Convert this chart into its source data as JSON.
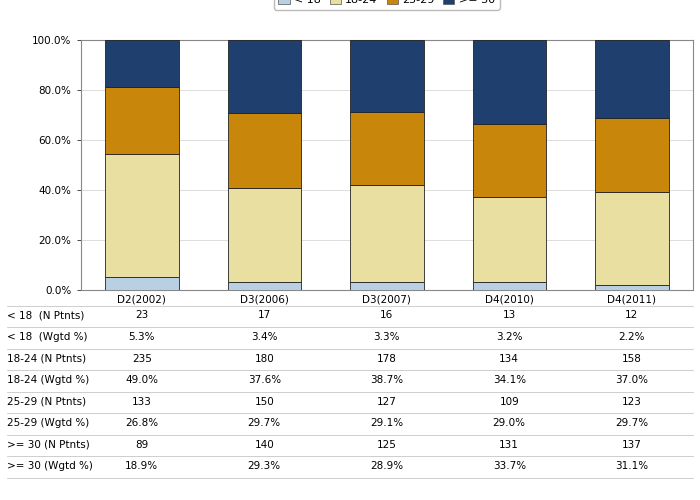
{
  "categories": [
    "D2(2002)",
    "D3(2006)",
    "D3(2007)",
    "D4(2010)",
    "D4(2011)"
  ],
  "series": {
    "< 18": [
      5.3,
      3.4,
      3.3,
      3.2,
      2.2
    ],
    "18-24": [
      49.0,
      37.6,
      38.7,
      34.1,
      37.0
    ],
    "25-29": [
      26.8,
      29.7,
      29.1,
      29.0,
      29.7
    ],
    ">= 30": [
      18.9,
      29.3,
      28.9,
      33.7,
      31.1
    ]
  },
  "colors": {
    "< 18": "#b8cfe4",
    "18-24": "#e8dfa0",
    "25-29": "#c8860a",
    ">= 30": "#1f3f6e"
  },
  "legend_labels": [
    "< 18",
    "18-24",
    "25-29",
    ">= 30"
  ],
  "table_data": {
    "< 18 (N Ptnts)": [
      "23",
      "17",
      "16",
      "13",
      "12"
    ],
    "< 18 (Wgtd %)": [
      "5.3%",
      "3.4%",
      "3.3%",
      "3.2%",
      "2.2%"
    ],
    "18-24 (N Ptnts)": [
      "235",
      "180",
      "178",
      "134",
      "158"
    ],
    "18-24 (Wgtd %)": [
      "49.0%",
      "37.6%",
      "38.7%",
      "34.1%",
      "37.0%"
    ],
    "25-29 (N Ptnts)": [
      "133",
      "150",
      "127",
      "109",
      "123"
    ],
    "25-29 (Wgtd %)": [
      "26.8%",
      "29.7%",
      "29.1%",
      "29.0%",
      "29.7%"
    ],
    ">= 30 (N Ptnts)": [
      "89",
      "140",
      "125",
      "131",
      "137"
    ],
    ">= 30 (Wgtd %)": [
      "18.9%",
      "29.3%",
      "28.9%",
      "33.7%",
      "31.1%"
    ]
  },
  "table_row_order": [
    "< 18 (N Ptnts)",
    "< 18 (Wgtd %)",
    "18-24 (N Ptnts)",
    "18-24 (Wgtd %)",
    "25-29 (N Ptnts)",
    "25-29 (Wgtd %)",
    ">= 30 (N Ptnts)",
    ">= 30 (Wgtd %)"
  ],
  "table_row_labels_display": [
    "< 18  (N Ptnts)",
    "< 18  (Wgtd %)",
    "18-24 (N Ptnts)",
    "18-24 (Wgtd %)",
    "25-29 (N Ptnts)",
    "25-29 (Wgtd %)",
    ">= 30 (N Ptnts)",
    ">= 30 (Wgtd %)"
  ],
  "bar_width": 0.6,
  "background_color": "#ffffff",
  "grid_color": "#d0d0d0",
  "border_color": "#888888",
  "font_size": 7.5,
  "legend_font_size": 8
}
